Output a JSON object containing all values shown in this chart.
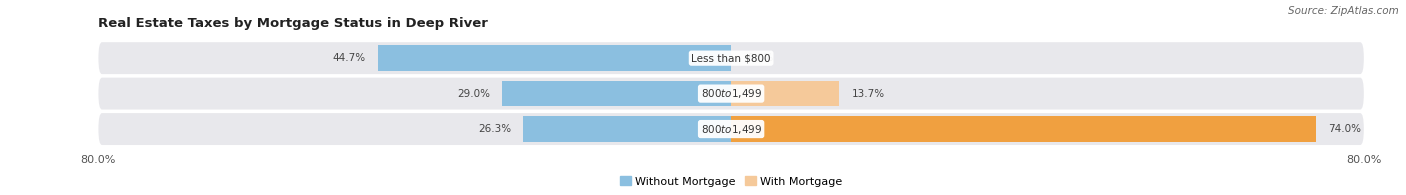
{
  "title": "Real Estate Taxes by Mortgage Status in Deep River",
  "source": "Source: ZipAtlas.com",
  "rows": [
    {
      "label": "Less than $800",
      "without_mortgage_pct": 44.7,
      "with_mortgage_pct": 0.0
    },
    {
      "label": "$800 to $1,499",
      "without_mortgage_pct": 29.0,
      "with_mortgage_pct": 13.7
    },
    {
      "label": "$800 to $1,499",
      "without_mortgage_pct": 26.3,
      "with_mortgage_pct": 74.0
    }
  ],
  "x_left_label": "80.0%",
  "x_right_label": "80.0%",
  "xlim_left": -80.0,
  "xlim_right": 80.0,
  "color_without": "#8BBFE0",
  "color_with_light": "#F5C99A",
  "color_with_dark": "#F0A040",
  "background_color": "#FFFFFF",
  "row_bg_color": "#E8E8EC",
  "title_fontsize": 9.5,
  "source_fontsize": 7.5,
  "label_fontsize": 7.5,
  "tick_fontsize": 8,
  "legend_fontsize": 8,
  "bar_height": 0.72
}
